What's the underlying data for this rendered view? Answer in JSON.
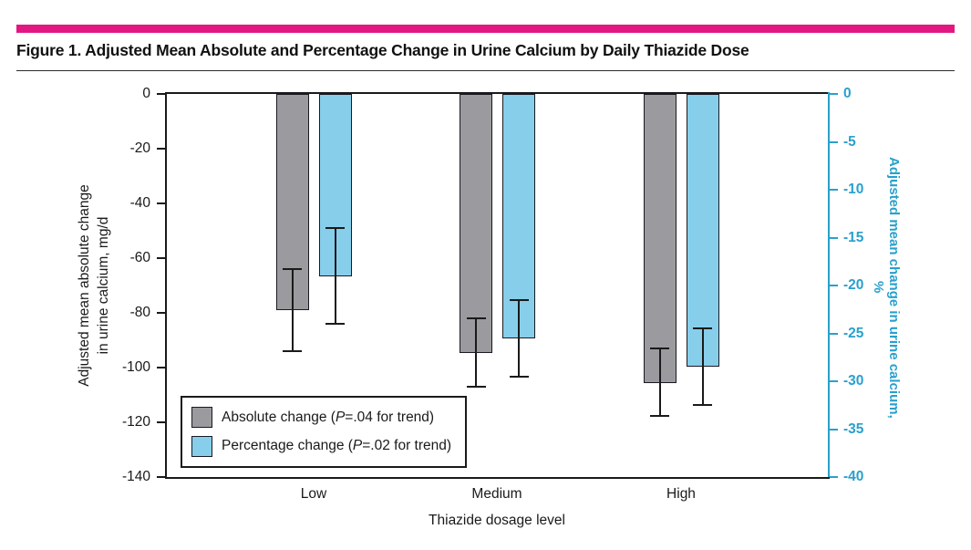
{
  "figure": {
    "title": "Figure 1. Adjusted Mean Absolute and Percentage Change in Urine Calcium by Daily Thiazide Dose"
  },
  "colors": {
    "accent": "#E31782",
    "ink": "#1A1A1A",
    "cyan": "#29A0CC",
    "bar_abs": "#9B9B9F",
    "bar_pct": "#87CEEB"
  },
  "chart_data": {
    "type": "bar",
    "categories": [
      "Low",
      "Medium",
      "High"
    ],
    "xlabel": "Thiazide dosage level",
    "grid": false,
    "legend_position": "bottom-left-inside",
    "left_axis": {
      "label_line1": "Adjusted mean absolute change",
      "label_line2": "in urine calcium, mg/d",
      "ticks": [
        0,
        -20,
        -40,
        -60,
        -80,
        -100,
        -120,
        -140
      ],
      "range": [
        0,
        -140
      ]
    },
    "right_axis": {
      "label": "Adjusted mean change in urine calcium, %",
      "ticks": [
        0,
        -5,
        -10,
        -15,
        -20,
        -25,
        -30,
        -35,
        -40
      ],
      "range": [
        0,
        -40
      ]
    },
    "series": [
      {
        "name": "Absolute change",
        "axis": "left",
        "unit": "mg/d",
        "values": [
          -79,
          -94.5,
          -105.5
        ],
        "ci_upper": [
          -64,
          -82,
          -93
        ],
        "ci_lower": [
          -94,
          -107,
          -117.5
        ]
      },
      {
        "name": "Percentage change",
        "axis": "right",
        "unit": "%",
        "values": [
          -19,
          -25.5,
          -28.5
        ],
        "ci_upper": [
          -14,
          -21.5,
          -24.5
        ],
        "ci_lower": [
          -24,
          -29.5,
          -32.5
        ]
      }
    ],
    "legend": {
      "items": [
        {
          "prefix": "Absolute change (",
          "p": "P",
          "suffix": "=.04 for trend)"
        },
        {
          "prefix": "Percentage change (",
          "p": "P",
          "suffix": "=.02 for trend)"
        }
      ]
    }
  }
}
